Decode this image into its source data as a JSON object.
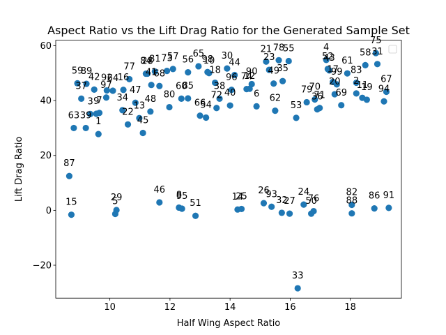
{
  "chart_data": {
    "type": "scatter",
    "title": "Aspect Ratio vs the Lift Drag Ratio for the Generated Sample Set",
    "xlabel": "Half Wing Aspect Ratio",
    "ylabel": "Lift Drag Ratio",
    "xlim": [
      8.2,
      19.7
    ],
    "ylim": [
      -32,
      62
    ],
    "xticks": [
      10,
      12,
      14,
      16,
      18
    ],
    "yticks": [
      -20,
      0,
      20,
      40,
      60
    ],
    "grid": false,
    "legend": "top-right, empty",
    "marker_color": "#1f77b4",
    "points": [
      {
        "label": "1",
        "x": 9.62,
        "y": 27.8
      },
      {
        "label": "2",
        "x": 18.2,
        "y": 42.6
      },
      {
        "label": "3",
        "x": 9.35,
        "y": 35.1
      },
      {
        "label": "4",
        "x": 17.2,
        "y": 54.8
      },
      {
        "label": "5",
        "x": 10.18,
        "y": -1.3
      },
      {
        "label": "6",
        "x": 14.88,
        "y": 37.9
      },
      {
        "label": "7",
        "x": 9.65,
        "y": 35.5
      },
      {
        "label": "8",
        "x": 12.3,
        "y": 1.0
      },
      {
        "label": "9",
        "x": 9.55,
        "y": 35.2
      },
      {
        "label": "10",
        "x": 13.3,
        "y": 50.0
      },
      {
        "label": "11",
        "x": 18.4,
        "y": 41.0
      },
      {
        "label": "12",
        "x": 14.65,
        "y": 44.3
      },
      {
        "label": "13",
        "x": 10.98,
        "y": 33.6
      },
      {
        "label": "14",
        "x": 14.25,
        "y": 0.3
      },
      {
        "label": "15",
        "x": 8.72,
        "y": -1.6
      },
      {
        "label": "16",
        "x": 10.45,
        "y": 43.9
      },
      {
        "label": "17",
        "x": 17.42,
        "y": 46.8
      },
      {
        "label": "18",
        "x": 13.5,
        "y": 46.5
      },
      {
        "label": "19",
        "x": 18.55,
        "y": 40.3
      },
      {
        "label": "20",
        "x": 17.48,
        "y": 42.3
      },
      {
        "label": "21",
        "x": 15.2,
        "y": 54.2
      },
      {
        "label": "22",
        "x": 10.6,
        "y": 31.3
      },
      {
        "label": "23",
        "x": 15.3,
        "y": 51.2
      },
      {
        "label": "24",
        "x": 16.45,
        "y": 2.1
      },
      {
        "label": "25",
        "x": 14.38,
        "y": 0.5
      },
      {
        "label": "26",
        "x": 15.12,
        "y": 2.6
      },
      {
        "label": "27",
        "x": 15.98,
        "y": -1.2
      },
      {
        "label": "28",
        "x": 11.25,
        "y": 49.8
      },
      {
        "label": "29",
        "x": 10.22,
        "y": 0.1
      },
      {
        "label": "30",
        "x": 13.9,
        "y": 51.7
      },
      {
        "label": "31",
        "x": 18.9,
        "y": 53.3
      },
      {
        "label": "32",
        "x": 15.72,
        "y": -0.9
      },
      {
        "label": "33",
        "x": 16.25,
        "y": -28.4
      },
      {
        "label": "34",
        "x": 10.42,
        "y": 36.5
      },
      {
        "label": "35",
        "x": 15.75,
        "y": 47.1
      },
      {
        "label": "36",
        "x": 16.9,
        "y": 36.8
      },
      {
        "label": "37",
        "x": 9.05,
        "y": 40.7
      },
      {
        "label": "38",
        "x": 13.65,
        "y": 40.7
      },
      {
        "label": "39",
        "x": 9.2,
        "y": 30.0
      },
      {
        "label": "40",
        "x": 14.0,
        "y": 38.2
      },
      {
        "label": "41",
        "x": 11.38,
        "y": 45.7
      },
      {
        "label": "42",
        "x": 9.48,
        "y": 44.0
      },
      {
        "label": "43",
        "x": 17.3,
        "y": 51.0
      },
      {
        "label": "44",
        "x": 14.15,
        "y": 49.3
      },
      {
        "label": "45",
        "x": 11.1,
        "y": 28.2
      },
      {
        "label": "46",
        "x": 11.65,
        "y": 2.9
      },
      {
        "label": "47",
        "x": 10.85,
        "y": 39.2
      },
      {
        "label": "48",
        "x": 11.35,
        "y": 36.0
      },
      {
        "label": "49",
        "x": 15.45,
        "y": 46.2
      },
      {
        "label": "50",
        "x": 16.7,
        "y": -1.2
      },
      {
        "label": "51",
        "x": 12.85,
        "y": -2.0
      },
      {
        "label": "52",
        "x": 17.25,
        "y": 51.5
      },
      {
        "label": "53",
        "x": 16.2,
        "y": 33.7
      },
      {
        "label": "54",
        "x": 13.2,
        "y": 33.8
      },
      {
        "label": "55",
        "x": 15.95,
        "y": 54.4
      },
      {
        "label": "56",
        "x": 12.6,
        "y": 50.3
      },
      {
        "label": "57",
        "x": 12.1,
        "y": 51.5
      },
      {
        "label": "58",
        "x": 18.5,
        "y": 52.9
      },
      {
        "label": "59",
        "x": 8.92,
        "y": 46.3
      },
      {
        "label": "60",
        "x": 12.38,
        "y": 40.7
      },
      {
        "label": "61",
        "x": 17.9,
        "y": 49.9
      },
      {
        "label": "62",
        "x": 15.5,
        "y": 36.3
      },
      {
        "label": "63",
        "x": 8.8,
        "y": 30.0
      },
      {
        "label": "64",
        "x": 10.1,
        "y": 43.6
      },
      {
        "label": "65",
        "x": 12.95,
        "y": 52.5
      },
      {
        "label": "66",
        "x": 13.0,
        "y": 34.5
      },
      {
        "label": "67",
        "x": 19.2,
        "y": 43.2
      },
      {
        "label": "68",
        "x": 11.65,
        "y": 45.3
      },
      {
        "label": "69",
        "x": 17.7,
        "y": 38.3
      },
      {
        "label": "70",
        "x": 16.82,
        "y": 40.4
      },
      {
        "label": "71",
        "x": 16.98,
        "y": 37.3
      },
      {
        "label": "72",
        "x": 13.55,
        "y": 37.3
      },
      {
        "label": "73",
        "x": 11.9,
        "y": 50.8
      },
      {
        "label": "74",
        "x": 14.55,
        "y": 44.2
      },
      {
        "label": "75",
        "x": 18.85,
        "y": 57.3
      },
      {
        "label": "76",
        "x": 16.78,
        "y": -0.3
      },
      {
        "label": "77",
        "x": 10.65,
        "y": 47.8
      },
      {
        "label": "78",
        "x": 15.62,
        "y": 54.7
      },
      {
        "label": "79",
        "x": 16.55,
        "y": 39.4
      },
      {
        "label": "80",
        "x": 11.98,
        "y": 37.6
      },
      {
        "label": "81",
        "x": 11.5,
        "y": 50.6
      },
      {
        "label": "82",
        "x": 18.05,
        "y": 2.0
      },
      {
        "label": "83",
        "x": 18.2,
        "y": 46.5
      },
      {
        "label": "84",
        "x": 11.2,
        "y": 49.8
      },
      {
        "label": "85",
        "x": 12.6,
        "y": 40.8
      },
      {
        "label": "86",
        "x": 18.8,
        "y": 0.7
      },
      {
        "label": "87",
        "x": 8.65,
        "y": 12.5
      },
      {
        "label": "88",
        "x": 18.05,
        "y": -1.1
      },
      {
        "label": "89",
        "x": 9.22,
        "y": 46.1
      },
      {
        "label": "90",
        "x": 14.72,
        "y": 46.0
      },
      {
        "label": "91",
        "x": 19.28,
        "y": 0.9
      },
      {
        "label": "92",
        "x": 9.9,
        "y": 43.7
      },
      {
        "label": "93",
        "x": 15.38,
        "y": 1.3
      },
      {
        "label": "94",
        "x": 19.12,
        "y": 39.7
      },
      {
        "label": "95",
        "x": 12.4,
        "y": 0.6
      },
      {
        "label": "96",
        "x": 14.05,
        "y": 43.9
      },
      {
        "label": "97",
        "x": 9.88,
        "y": 41.1
      },
      {
        "label": "98",
        "x": 13.25,
        "y": 50.4
      },
      {
        "label": "99",
        "x": 17.55,
        "y": 45.9
      }
    ]
  }
}
